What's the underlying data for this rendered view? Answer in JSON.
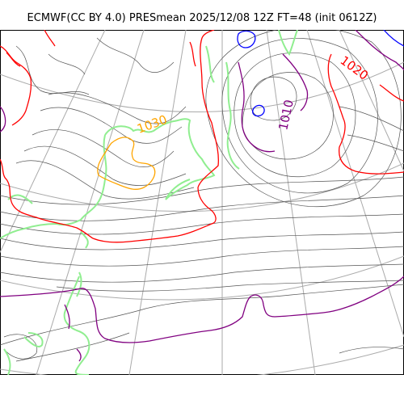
{
  "title": "ECMWF(CC BY 4.0) PRESmean 2025/12/08 12Z FT=48 (init 0612Z)",
  "isobar_labels": [
    {
      "text": "1030",
      "color": "#ffa500"
    },
    {
      "text": "1010",
      "color": "#800080"
    },
    {
      "text": "1020",
      "color": "#ff0000"
    }
  ],
  "line_colors": {
    "isobar": "#555555",
    "coastline": "#90ee90",
    "isobar_1020": "#ff0000",
    "isobar_1030": "#ffa500",
    "isobar_1010": "#800080",
    "isobar_low": "#0000ff",
    "graticule": "#aaaaaa"
  }
}
